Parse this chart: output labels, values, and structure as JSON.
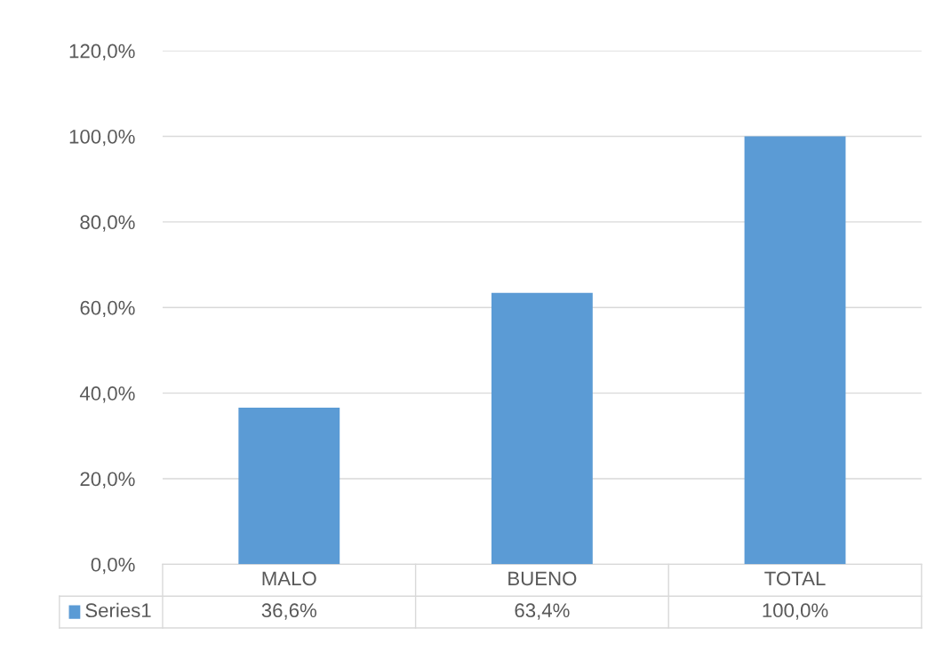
{
  "chart_data": {
    "type": "bar",
    "categories": [
      "MALO",
      "BUENO",
      "TOTAL"
    ],
    "series": [
      {
        "name": "Series1",
        "color": "#5b9bd5",
        "values": [
          36.6,
          63.4,
          100.0
        ],
        "value_labels": [
          "36,6%",
          "63,4%",
          "100,0%"
        ]
      }
    ],
    "ylim": [
      0,
      120
    ],
    "yticks": [
      {
        "value": 0,
        "label": "0,0%"
      },
      {
        "value": 20,
        "label": "20,0%"
      },
      {
        "value": 40,
        "label": "40,0%"
      },
      {
        "value": 60,
        "label": "60,0%"
      },
      {
        "value": 80,
        "label": "80,0%"
      },
      {
        "value": 100,
        "label": "100,0%"
      },
      {
        "value": 120,
        "label": "120,0%"
      }
    ],
    "grid": "y",
    "legend": "bottom"
  }
}
